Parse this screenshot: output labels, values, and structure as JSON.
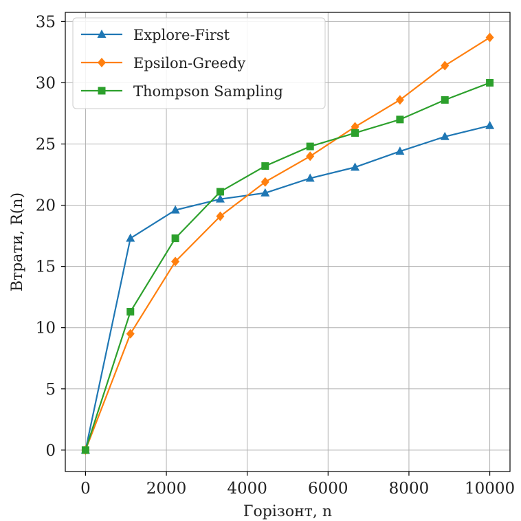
{
  "chart_data": {
    "type": "line",
    "title": "",
    "xlabel": "Горізонт, n",
    "ylabel": "Втрати, R(n)",
    "xlim": [
      -500,
      10500
    ],
    "ylim": [
      -1.75,
      35.75
    ],
    "xticks": [
      0,
      2000,
      4000,
      6000,
      8000,
      10000
    ],
    "yticks": [
      0,
      5,
      10,
      15,
      20,
      25,
      30,
      35
    ],
    "grid": true,
    "legend_position": "top-left",
    "x": [
      0,
      1111,
      2222,
      3333,
      4444,
      5556,
      6667,
      7778,
      8889,
      10000
    ],
    "series": [
      {
        "name": "Explore-First",
        "color": "#1f77b4",
        "marker": "triangle",
        "values": [
          0,
          17.3,
          19.6,
          20.5,
          21.0,
          22.2,
          23.1,
          24.4,
          25.6,
          26.5
        ]
      },
      {
        "name": "Epsilon-Greedy",
        "color": "#ff7f0e",
        "marker": "diamond",
        "values": [
          0,
          9.5,
          15.4,
          19.1,
          21.9,
          24.0,
          26.4,
          28.6,
          31.4,
          33.7
        ]
      },
      {
        "name": "Thompson Sampling",
        "color": "#2ca02c",
        "marker": "square",
        "values": [
          0,
          11.3,
          17.3,
          21.1,
          23.2,
          24.8,
          25.9,
          27.0,
          28.6,
          30.0
        ]
      }
    ]
  }
}
